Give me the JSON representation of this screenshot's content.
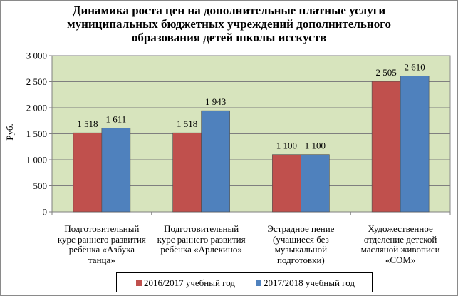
{
  "chart_data": {
    "type": "bar",
    "title_lines": [
      "Динамика роста цен на дополнительные платные услуги",
      "муниципальных бюджетных учреждений дополнительного",
      "образования детей школы исскуств"
    ],
    "ylabel": "Руб.",
    "ylim": [
      0,
      3000
    ],
    "yticks": [
      0,
      500,
      1000,
      1500,
      2000,
      2500,
      3000
    ],
    "ytick_labels": [
      "0",
      "500",
      "1 000",
      "1 500",
      "2 000",
      "2 500",
      "3 000"
    ],
    "categories": [
      [
        "Подготовительный",
        "курс раннего развития",
        "ребёнка «Азбука",
        "танца»"
      ],
      [
        "Подготовительный",
        "курс раннего развития",
        "ребёнка «Арлекино»"
      ],
      [
        "Эстрадное пение",
        "(учащиеся без",
        "музыкальной",
        "подготовки)"
      ],
      [
        "Художественное",
        "отделение детской",
        "масляной живописи",
        "«СОМ»"
      ]
    ],
    "series": [
      {
        "name": "2016/2017 учебный год",
        "color": "#c0504d",
        "values": [
          1518,
          1518,
          1100,
          2505
        ],
        "labels": [
          "1 518",
          "1 518",
          "1 100",
          "2 505"
        ]
      },
      {
        "name": "2017/2018 учебный год",
        "color": "#4f81bd",
        "values": [
          1611,
          1943,
          1100,
          2610
        ],
        "labels": [
          "1 611",
          "1 943",
          "1 100",
          "2 610"
        ]
      }
    ],
    "plot_background": "#d7e4bd",
    "grid": true,
    "legend_position": "bottom"
  }
}
